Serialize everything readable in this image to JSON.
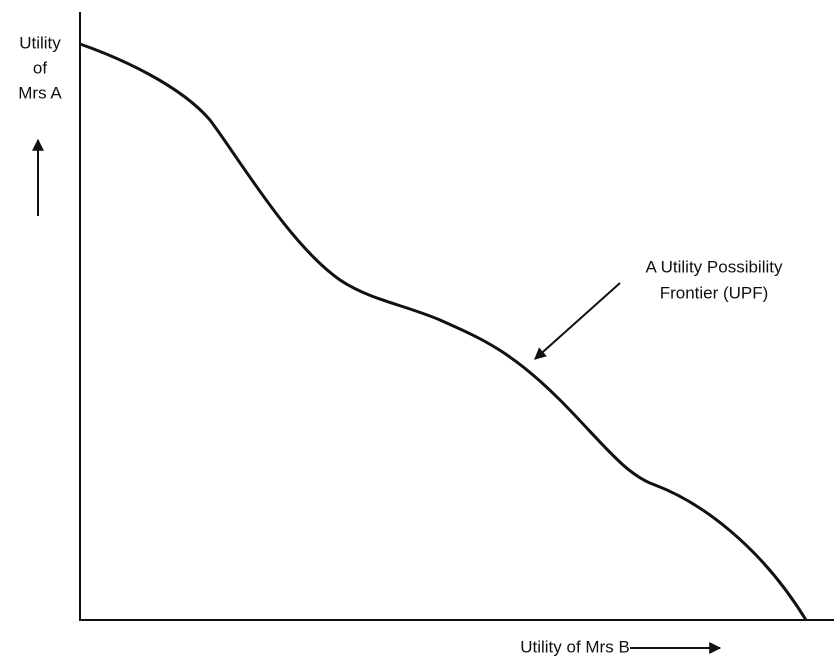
{
  "y_axis_label": [
    "Utility",
    "of",
    "Mrs A"
  ],
  "x_axis_label": "Utility of Mrs B",
  "annotation": [
    "A Utility Possibility",
    "Frontier (UPF)"
  ]
}
